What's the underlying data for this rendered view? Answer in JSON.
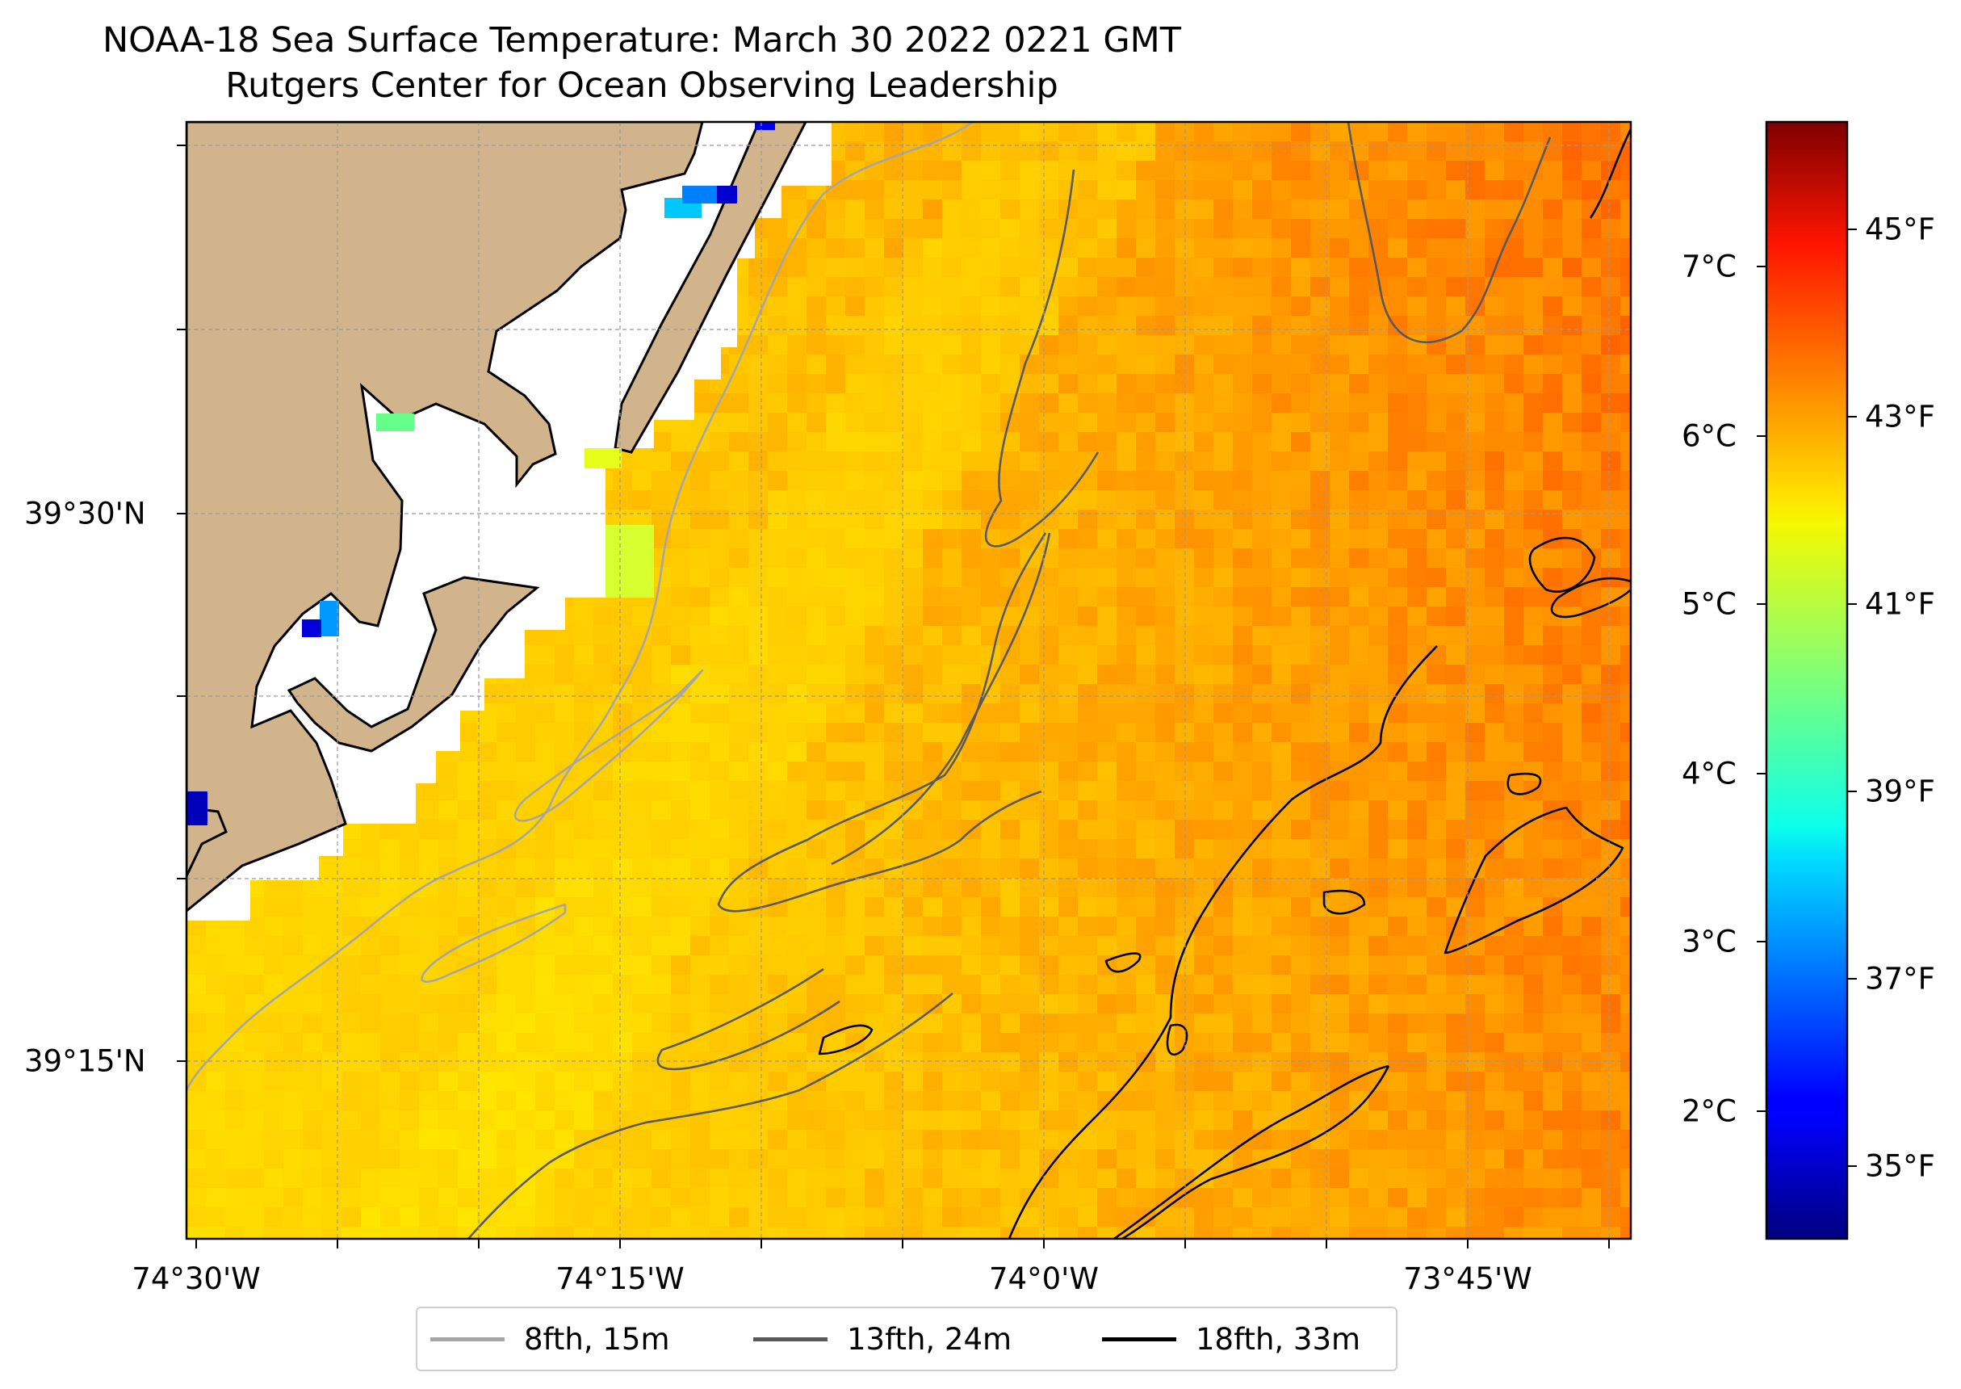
{
  "title": "NOAA-18 Sea Surface Temperature: March 30 2022 0221 GMT",
  "subtitle": "Rutgers Center for Ocean Observing Leadership",
  "map": {
    "extent": {
      "lon_min": "74°30.3'W",
      "lon_max": "73°39'W",
      "lat_min": "39°10.2'N",
      "lat_max": "39°40.7'N"
    },
    "x_ticks": [
      "74°30'W",
      "74°15'W",
      "74°0'W",
      "73°45'W"
    ],
    "y_ticks": [
      "39°30'N",
      "39°15'N"
    ],
    "gridlines": true,
    "land_color": "#d2b48c",
    "features": [
      "New Jersey coast",
      "barrier island",
      "bay",
      "bathymetry contours"
    ]
  },
  "colorbar": {
    "colormap": "jet",
    "celsius_ticks": [
      "7°C",
      "6°C",
      "5°C",
      "4°C",
      "3°C",
      "2°C"
    ],
    "fahrenheit_ticks": [
      "45°F",
      "43°F",
      "41°F",
      "39°F",
      "37°F",
      "35°F"
    ],
    "range_c": [
      1.4,
      7.9
    ]
  },
  "legend": {
    "placement": "bottom-center",
    "items": [
      {
        "label": "8fth, 15m",
        "color": "#a6a6a6"
      },
      {
        "label": "13fth, 24m",
        "color": "#595959"
      },
      {
        "label": "18fth, 33m",
        "color": "#000000"
      }
    ]
  }
}
